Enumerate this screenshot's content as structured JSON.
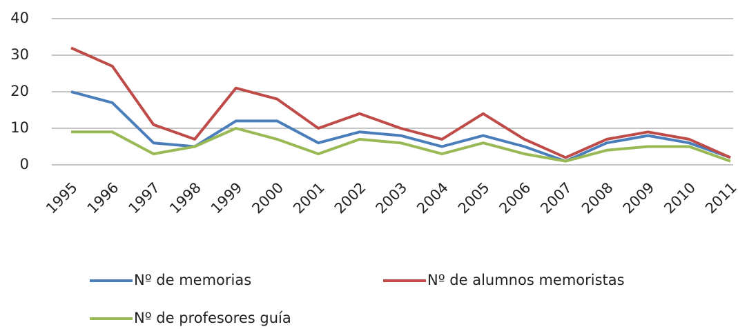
{
  "chart_data": {
    "type": "line",
    "categories": [
      "1995",
      "1996",
      "1997",
      "1998",
      "1999",
      "2000",
      "2001",
      "2002",
      "2003",
      "2004",
      "2005",
      "2006",
      "2007",
      "2008",
      "2009",
      "2010",
      "2011"
    ],
    "series": [
      {
        "name": "Nº de memorias",
        "color": "#4a7ebb",
        "values": [
          20,
          17,
          6,
          5,
          12,
          12,
          6,
          9,
          8,
          5,
          8,
          5,
          1,
          6,
          8,
          6,
          2
        ]
      },
      {
        "name": "Nº de alumnos memoristas",
        "color": "#be4b48",
        "values": [
          32,
          27,
          11,
          7,
          21,
          18,
          10,
          14,
          10,
          7,
          14,
          7,
          2,
          7,
          9,
          7,
          2
        ]
      },
      {
        "name": "Nº de profesores guía",
        "color": "#98b954",
        "values": [
          9,
          9,
          3,
          5,
          10,
          7,
          3,
          7,
          6,
          3,
          6,
          3,
          1,
          4,
          5,
          5,
          1
        ]
      }
    ],
    "ylim": [
      0,
      40
    ],
    "yticks": [
      0,
      10,
      20,
      30,
      40
    ],
    "grid": true,
    "legend": "bottom"
  }
}
